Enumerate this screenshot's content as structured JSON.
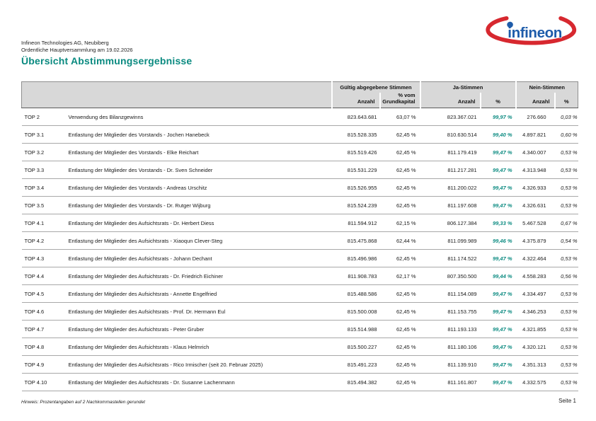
{
  "doc": {
    "company_line1": "Infineon Technologies AG, Neubiberg",
    "company_line2": "Ordentliche Hauptversammlung am 19.02.2026",
    "title": "Übersicht Abstimmungsergebnisse",
    "footnote": "Hinweis: Prozentangaben auf 2 Nachkommastellen gerundet",
    "page_label": "Seite 1"
  },
  "logo": {
    "brand": "Infineon",
    "text": "infineon",
    "blue": "#1e5caa",
    "red": "#d7282f"
  },
  "colors": {
    "accent_teal": "#0a8a80",
    "header_gray": "#d8d8d8"
  },
  "table": {
    "groups": [
      {
        "label": "Gültig abgegebene Stimmen",
        "cols": [
          "Anzahl",
          "% vom\nGrundkapital"
        ]
      },
      {
        "label": "Ja-Stimmen",
        "cols": [
          "Anzahl",
          "%"
        ]
      },
      {
        "label": "Nein-Stimmen",
        "cols": [
          "Anzahl",
          "%"
        ]
      }
    ],
    "rows": [
      {
        "top": "TOP 2",
        "desc": "Verwendung des Bilanzgewinns",
        "valid": "823.643.681",
        "capital_pct": "63,07 %",
        "yes": "823.367.021",
        "yes_pct": "99,97 %",
        "no": "276.660",
        "no_pct": "0,03 %"
      },
      {
        "top": "TOP 3.1",
        "desc": "Entlastung der Mitglieder des Vorstands - Jochen Hanebeck",
        "valid": "815.528.335",
        "capital_pct": "62,45 %",
        "yes": "810.630.514",
        "yes_pct": "99,40 %",
        "no": "4.897.821",
        "no_pct": "0,60 %"
      },
      {
        "top": "TOP 3.2",
        "desc": "Entlastung der Mitglieder des Vorstands - Elke Reichart",
        "valid": "815.519.426",
        "capital_pct": "62,45 %",
        "yes": "811.179.419",
        "yes_pct": "99,47 %",
        "no": "4.340.007",
        "no_pct": "0,53 %"
      },
      {
        "top": "TOP 3.3",
        "desc": "Entlastung der Mitglieder des Vorstands - Dr. Sven Schneider",
        "valid": "815.531.229",
        "capital_pct": "62,45 %",
        "yes": "811.217.281",
        "yes_pct": "99,47 %",
        "no": "4.313.948",
        "no_pct": "0,53 %"
      },
      {
        "top": "TOP 3.4",
        "desc": "Entlastung der Mitglieder des Vorstands - Andreas Urschitz",
        "valid": "815.526.955",
        "capital_pct": "62,45 %",
        "yes": "811.200.022",
        "yes_pct": "99,47 %",
        "no": "4.326.933",
        "no_pct": "0,53 %"
      },
      {
        "top": "TOP 3.5",
        "desc": "Entlastung der Mitglieder des Vorstands - Dr. Rutger Wijburg",
        "valid": "815.524.239",
        "capital_pct": "62,45 %",
        "yes": "811.197.608",
        "yes_pct": "99,47 %",
        "no": "4.326.631",
        "no_pct": "0,53 %"
      },
      {
        "top": "TOP 4.1",
        "desc": "Entlastung der Mitglieder des Aufsichtsrats - Dr. Herbert Diess",
        "valid": "811.594.912",
        "capital_pct": "62,15 %",
        "yes": "806.127.384",
        "yes_pct": "99,33 %",
        "no": "5.467.528",
        "no_pct": "0,67 %"
      },
      {
        "top": "TOP 4.2",
        "desc": "Entlastung der Mitglieder des Aufsichtsrats - Xiaoqun Clever-Steg",
        "valid": "815.475.868",
        "capital_pct": "62,44 %",
        "yes": "811.099.989",
        "yes_pct": "99,46 %",
        "no": "4.375.879",
        "no_pct": "0,54 %"
      },
      {
        "top": "TOP 4.3",
        "desc": "Entlastung der Mitglieder des Aufsichtsrats - Johann Dechant",
        "valid": "815.496.986",
        "capital_pct": "62,45 %",
        "yes": "811.174.522",
        "yes_pct": "99,47 %",
        "no": "4.322.464",
        "no_pct": "0,53 %"
      },
      {
        "top": "TOP 4.4",
        "desc": "Entlastung der Mitglieder des Aufsichtsrats - Dr. Friedrich Eichiner",
        "valid": "811.908.783",
        "capital_pct": "62,17 %",
        "yes": "807.350.500",
        "yes_pct": "99,44 %",
        "no": "4.558.283",
        "no_pct": "0,56 %"
      },
      {
        "top": "TOP 4.5",
        "desc": "Entlastung der Mitglieder des Aufsichtsrats - Annette Engelfried",
        "valid": "815.488.586",
        "capital_pct": "62,45 %",
        "yes": "811.154.089",
        "yes_pct": "99,47 %",
        "no": "4.334.497",
        "no_pct": "0,53 %"
      },
      {
        "top": "TOP 4.6",
        "desc": "Entlastung der Mitglieder des Aufsichtsrats - Prof. Dr. Hermann Eul",
        "valid": "815.500.008",
        "capital_pct": "62,45 %",
        "yes": "811.153.755",
        "yes_pct": "99,47 %",
        "no": "4.346.253",
        "no_pct": "0,53 %"
      },
      {
        "top": "TOP 4.7",
        "desc": "Entlastung der Mitglieder des Aufsichtsrats - Peter Gruber",
        "valid": "815.514.988",
        "capital_pct": "62,45 %",
        "yes": "811.193.133",
        "yes_pct": "99,47 %",
        "no": "4.321.855",
        "no_pct": "0,53 %"
      },
      {
        "top": "TOP 4.8",
        "desc": "Entlastung der Mitglieder des Aufsichtsrats - Klaus Helmrich",
        "valid": "815.500.227",
        "capital_pct": "62,45 %",
        "yes": "811.180.106",
        "yes_pct": "99,47 %",
        "no": "4.320.121",
        "no_pct": "0,53 %"
      },
      {
        "top": "TOP 4.9",
        "desc": "Entlastung der Mitglieder des Aufsichtsrats - Rico Irmischer (seit 20. Februar 2025)",
        "valid": "815.491.223",
        "capital_pct": "62,45 %",
        "yes": "811.139.910",
        "yes_pct": "99,47 %",
        "no": "4.351.313",
        "no_pct": "0,53 %"
      },
      {
        "top": "TOP 4.10",
        "desc": "Entlastung der Mitglieder des Aufsichtsrats - Dr. Susanne Lachenmann",
        "valid": "815.494.382",
        "capital_pct": "62,45 %",
        "yes": "811.161.807",
        "yes_pct": "99,47 %",
        "no": "4.332.575",
        "no_pct": "0,53 %"
      }
    ]
  }
}
